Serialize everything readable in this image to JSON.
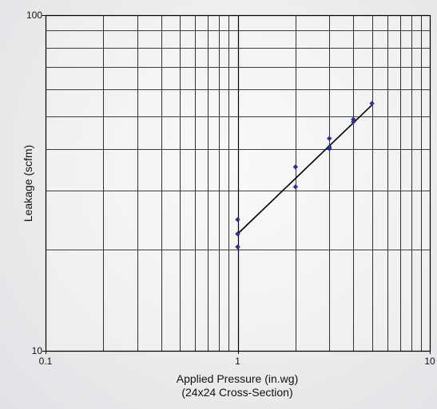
{
  "chart_data": {
    "type": "scatter",
    "title": "",
    "xlabel": "Applied Pressure (in.wg)",
    "xlabel_sub": "(24x24 Cross-Section)",
    "ylabel": "Leakage (scfm)",
    "xscale": "log",
    "yscale": "log",
    "xlim": [
      0.1,
      10
    ],
    "ylim": [
      10,
      100
    ],
    "x_tick_labels": [
      "0.1",
      "1",
      "10"
    ],
    "y_tick_labels": [
      "10",
      "100"
    ],
    "grid": true,
    "colors": {
      "points": "#2e3192",
      "fit": "#000000",
      "grid": "#000000"
    },
    "series": [
      {
        "values": [
          {
            "x": 1,
            "y": 24.6
          },
          {
            "x": 1,
            "y": 22.3
          },
          {
            "x": 1,
            "y": 20.4
          },
          {
            "x": 2,
            "y": 35.3
          },
          {
            "x": 2,
            "y": 30.8
          },
          {
            "x": 3,
            "y": 42.9
          },
          {
            "x": 3,
            "y": 40.5
          },
          {
            "x": 3,
            "y": 40.0
          },
          {
            "x": 4,
            "y": 48.9
          },
          {
            "x": 4,
            "y": 48.1
          },
          {
            "x": 5,
            "y": 54.6
          }
        ]
      }
    ],
    "trendline": {
      "type": "power",
      "x": [
        1,
        5
      ],
      "y": [
        22.3,
        54.0
      ]
    }
  }
}
